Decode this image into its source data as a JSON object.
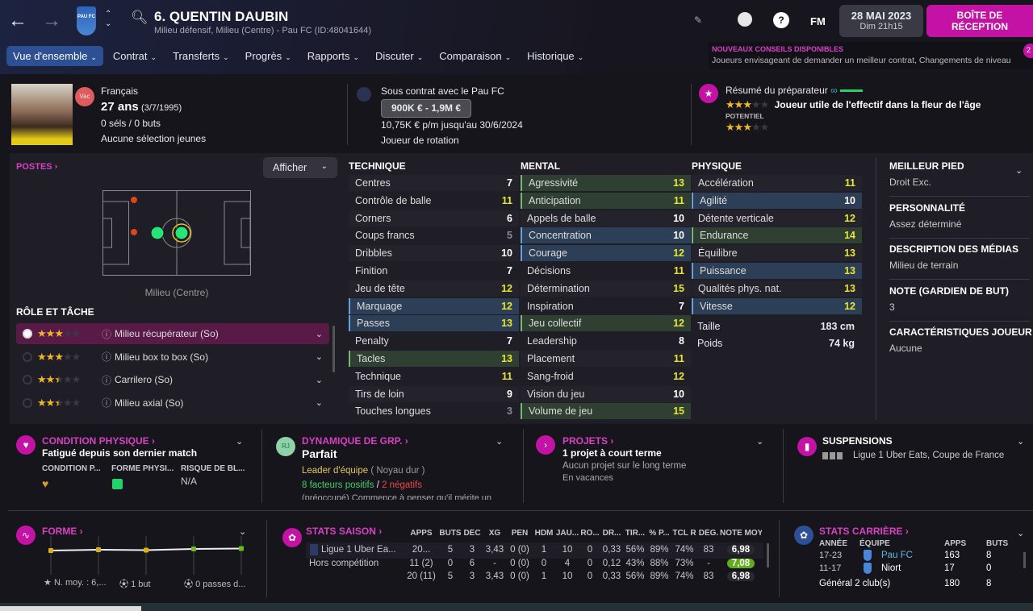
{
  "header": {
    "player_title": "6. QUENTIN DAUBIN",
    "subtitle": "Milieu défensif, Milieu (Centre) - Pau FC (ID:48041644)",
    "club_badge_text": "PAU FC",
    "fm_label": "FM",
    "date": "28 MAI 2023",
    "time": "Dim 21h15",
    "inbox": "BOÎTE DE RÉCEPTION",
    "inbox_count": "2"
  },
  "news": {
    "title": "NOUVEAUX CONSEILS DISPONIBLES",
    "text": "Joueurs envisageant de demander un meilleur contrat, Changements de niveau"
  },
  "menu": [
    "Vue d'ensemble",
    "Contrat",
    "Transferts",
    "Progrès",
    "Rapports",
    "Discuter",
    "Comparaison",
    "Historique"
  ],
  "profile": {
    "badge": "Vac",
    "nationality": "Français",
    "age": "27 ans",
    "dob": "(3/7/1995)",
    "caps": "0 séls / 0 buts",
    "youth": "Aucune sélection jeunes"
  },
  "contract": {
    "title": "Sous contrat avec le Pau FC",
    "value": "900K € - 1,9M €",
    "wage": "10,75K € p/m jusqu'au 30/6/2024",
    "status": "Joueur de rotation"
  },
  "scout": {
    "title": "Résumé du préparateur",
    "ability_stars": 3,
    "summary": "Joueur utile de l'effectif dans la fleur de l'âge",
    "potential_label": "POTENTIEL",
    "potential_stars": 3
  },
  "positions": {
    "title": "POSTES",
    "display_button": "Afficher",
    "position_label": "Milieu (Centre)",
    "role_title": "RÔLE ET TÂCHE",
    "roles": [
      {
        "name": "Milieu récupérateur (So)",
        "stars": 3,
        "selected": true
      },
      {
        "name": "Milieu box to box (So)",
        "stars": 3,
        "selected": false
      },
      {
        "name": "Carrilero (So)",
        "stars": 2.5,
        "selected": false
      },
      {
        "name": "Milieu axial (So)",
        "stars": 2.5,
        "selected": false
      }
    ]
  },
  "attributes": {
    "technique": {
      "title": "TECHNIQUE",
      "items": [
        [
          "Centres",
          7,
          ""
        ],
        [
          "Contrôle de balle",
          11,
          ""
        ],
        [
          "Corners",
          6,
          ""
        ],
        [
          "Coups francs",
          5,
          ""
        ],
        [
          "Dribbles",
          10,
          ""
        ],
        [
          "Finition",
          7,
          ""
        ],
        [
          "Jeu de tête",
          12,
          ""
        ],
        [
          "Marquage",
          12,
          "blue"
        ],
        [
          "Passes",
          13,
          "blue"
        ],
        [
          "Penalty",
          7,
          ""
        ],
        [
          "Tacles",
          13,
          "green"
        ],
        [
          "Technique",
          11,
          ""
        ],
        [
          "Tirs de loin",
          9,
          ""
        ],
        [
          "Touches longues",
          3,
          ""
        ]
      ]
    },
    "mental": {
      "title": "MENTAL",
      "items": [
        [
          "Agressivité",
          13,
          "green"
        ],
        [
          "Anticipation",
          11,
          "green"
        ],
        [
          "Appels de balle",
          10,
          ""
        ],
        [
          "Concentration",
          10,
          "blue"
        ],
        [
          "Courage",
          12,
          "blue"
        ],
        [
          "Décisions",
          11,
          ""
        ],
        [
          "Détermination",
          15,
          ""
        ],
        [
          "Inspiration",
          7,
          ""
        ],
        [
          "Jeu collectif",
          12,
          "green"
        ],
        [
          "Leadership",
          8,
          ""
        ],
        [
          "Placement",
          11,
          ""
        ],
        [
          "Sang-froid",
          12,
          ""
        ],
        [
          "Vision du jeu",
          10,
          ""
        ],
        [
          "Volume de jeu",
          15,
          "green"
        ]
      ]
    },
    "physique": {
      "title": "PHYSIQUE",
      "items": [
        [
          "Accélération",
          11,
          ""
        ],
        [
          "Agilité",
          10,
          "blue"
        ],
        [
          "Détente verticale",
          12,
          ""
        ],
        [
          "Endurance",
          14,
          "green"
        ],
        [
          "Équilibre",
          13,
          ""
        ],
        [
          "Puissance",
          13,
          "blue"
        ],
        [
          "Qualités phys. nat.",
          13,
          ""
        ],
        [
          "Vitesse",
          12,
          "blue"
        ]
      ],
      "height_label": "Taille",
      "height": "183 cm",
      "weight_label": "Poids",
      "weight": "74 kg"
    }
  },
  "info": [
    {
      "label": "MEILLEUR PIED",
      "value": "Droit Exc."
    },
    {
      "label": "PERSONNALITÉ",
      "value": "Assez déterminé"
    },
    {
      "label": "DESCRIPTION DES MÉDIAS",
      "value": "Milieu de terrain"
    },
    {
      "label": "NOTE (GARDIEN DE BUT)",
      "value": "3"
    },
    {
      "label": "CARACTÉRISTIQUES JOUEUR",
      "value": "Aucune"
    }
  ],
  "condition": {
    "title": "CONDITION PHYSIQUE",
    "status": "Fatigué depuis son dernier match",
    "cols": [
      "CONDITION P...",
      "FORME PHYSI...",
      "RISQUE DE BL..."
    ],
    "risk": "N/A"
  },
  "dynamics": {
    "title": "DYNAMIQUE DE GRP.",
    "avatar": "RJ",
    "status": "Parfait",
    "role": "Leader d'équipe",
    "group": "( Noyau dur )",
    "positive": "8 facteurs positifs",
    "slash": "/",
    "negative": "2 négatifs",
    "note": "(préoccupé) Commence à penser qu'il mérite un"
  },
  "projects": {
    "title": "PROJETS",
    "main": "1 projet à court terme",
    "line1": "Aucun projet sur le long terme",
    "line2": "En vacances"
  },
  "suspensions": {
    "title": "SUSPENSIONS",
    "text": "Ligue 1 Uber Eats, Coupe de France"
  },
  "form": {
    "title": "FORME",
    "ratings": [
      6.7,
      6.8,
      6.75,
      6.9,
      6.95
    ],
    "avg": "N. moy. : 6,...",
    "goals": "1 but",
    "assists": "0 passes d...",
    "colors": [
      "#d8b20f",
      "#d8b20f",
      "#d8b20f",
      "#6cbc1c",
      "#6cbc1c"
    ]
  },
  "season": {
    "title": "STATS SAISON",
    "headers": [
      "APPS",
      "BUTS",
      "DÉC",
      "XG",
      "PEN",
      "HDM",
      "JAU...",
      "RO...",
      "DR...",
      "TIR...",
      "% P...",
      "TCL R",
      "DÉG.",
      "NOTE MOY"
    ],
    "rows": [
      {
        "comp": "Ligue 1 Uber Ea...",
        "vals": [
          "20...",
          "5",
          "3",
          "3,43",
          "0 (0)",
          "1",
          "10",
          "0",
          "0,33",
          "56%",
          "89%",
          "74%",
          "83",
          "6,98"
        ]
      },
      {
        "comp": "Hors compétition",
        "vals": [
          "11 (2)",
          "0",
          "6",
          "-",
          "0 (0)",
          "0",
          "4",
          "0",
          "0,12",
          "43%",
          "88%",
          "73%",
          "-",
          "7,08"
        ]
      },
      {
        "comp": "",
        "vals": [
          "20 (11)",
          "5",
          "3",
          "3,43",
          "0 (0)",
          "1",
          "10",
          "0",
          "0,33",
          "56%",
          "89%",
          "74%",
          "83",
          "6,98"
        ]
      }
    ]
  },
  "career": {
    "title": "STATS CARRIÈRE",
    "headers": [
      "ANNÉE",
      "ÉQUIPE",
      "APPS",
      "BUTS"
    ],
    "rows": [
      [
        "17-23",
        "Pau FC",
        "163",
        "8"
      ],
      [
        "11-17",
        "Niort",
        "17",
        "0"
      ]
    ],
    "total": [
      "Général 2 club(s)",
      "180",
      "8"
    ]
  },
  "colors": {
    "accent": "#c412a4",
    "header_blue": "#2d4f93",
    "attr_high": "#e8e82a"
  }
}
